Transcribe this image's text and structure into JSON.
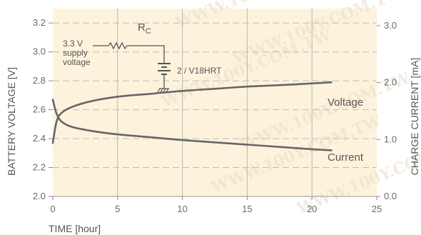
{
  "chart_data": {
    "type": "line",
    "xlabel": "TIME [hour]",
    "ylabel": "BATTERY VOLTAGE [V]",
    "ylabel_right": "CHARGE CURRENT [mA]",
    "xlim": [
      0,
      25
    ],
    "ylim": [
      2.0,
      3.3
    ],
    "ylim_right": [
      0.0,
      3.3
    ],
    "x_ticks": [
      "0",
      "5",
      "10",
      "15",
      "20",
      "25"
    ],
    "y_ticks": [
      "2.0",
      "2.2",
      "2.4",
      "2.6",
      "2.8",
      "3.0",
      "3.2"
    ],
    "y_ticks_right": [
      "0.0",
      "1.0",
      "2.0",
      "3.0"
    ],
    "grid": true,
    "background": "#fdf3dc",
    "line_color": "#666666",
    "series": [
      {
        "name": "Voltage",
        "axis": "left",
        "x": [
          0,
          0.3,
          0.7,
          1.5,
          3,
          5,
          7.5,
          10,
          12.5,
          15,
          17.5,
          20,
          21.5
        ],
        "y": [
          2.37,
          2.52,
          2.58,
          2.62,
          2.66,
          2.69,
          2.71,
          2.73,
          2.745,
          2.76,
          2.77,
          2.782,
          2.79
        ]
      },
      {
        "name": "Current",
        "axis": "right",
        "x": [
          0,
          0.3,
          0.7,
          1.5,
          3,
          5,
          7.5,
          10,
          12.5,
          15,
          17.5,
          20,
          21.5
        ],
        "y": [
          1.7,
          1.45,
          1.31,
          1.22,
          1.15,
          1.09,
          1.04,
          0.99,
          0.95,
          0.91,
          0.87,
          0.83,
          0.81
        ]
      }
    ]
  },
  "circuit": {
    "resistor_label": "R",
    "resistor_subscript": "C",
    "supply_line1": "3.3 V",
    "supply_line2": "supply",
    "supply_line3": "voltage",
    "battery_label": "2 / V18HRT"
  },
  "watermark": "WWW.100Y.COM.TW"
}
